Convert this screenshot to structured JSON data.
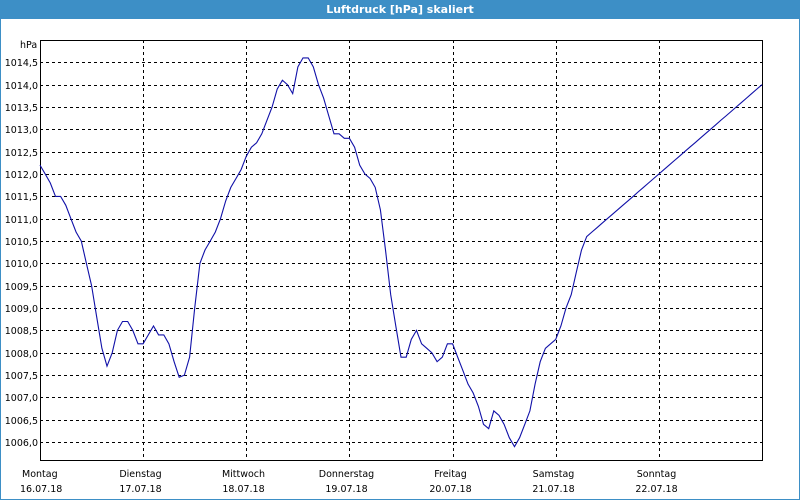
{
  "window": {
    "title": "Luftdruck [hPa] skaliert"
  },
  "chart_data": {
    "type": "line",
    "title": "Luftdruck [hPa] skaliert",
    "ylabel": "hPa",
    "xlabel": "",
    "ylim": [
      1005.6,
      1015.0
    ],
    "xlim": [
      0,
      7
    ],
    "grid": true,
    "yticks": [
      "1006,0",
      "1006,5",
      "1007,0",
      "1007,5",
      "1008,0",
      "1008,5",
      "1009,0",
      "1009,5",
      "1010,0",
      "1010,5",
      "1011,0",
      "1011,5",
      "1012,0",
      "1012,5",
      "1013,0",
      "1013,5",
      "1014,0",
      "1014,5"
    ],
    "xticks": [
      {
        "day": "Montag",
        "date": "16.07.18"
      },
      {
        "day": "Dienstag",
        "date": "17.07.18"
      },
      {
        "day": "Mittwoch",
        "date": "18.07.18"
      },
      {
        "day": "Donnerstag",
        "date": "19.07.18"
      },
      {
        "day": "Freitag",
        "date": "20.07.18"
      },
      {
        "day": "Samstag",
        "date": "21.07.18"
      },
      {
        "day": "Sonntag",
        "date": "22.07.18"
      }
    ],
    "series": [
      {
        "color": "#1010a8",
        "x": [
          0,
          0.05,
          0.1,
          0.15,
          0.2,
          0.25,
          0.3,
          0.35,
          0.4,
          0.45,
          0.5,
          0.55,
          0.6,
          0.65,
          0.7,
          0.75,
          0.8,
          0.85,
          0.9,
          0.95,
          1.0,
          1.05,
          1.1,
          1.15,
          1.2,
          1.25,
          1.3,
          1.35,
          1.4,
          1.45,
          1.5,
          1.55,
          1.6,
          1.65,
          1.7,
          1.75,
          1.8,
          1.85,
          1.9,
          1.95,
          2.0,
          2.05,
          2.1,
          2.15,
          2.2,
          2.25,
          2.3,
          2.35,
          2.4,
          2.45,
          2.5,
          2.55,
          2.6,
          2.65,
          2.7,
          2.75,
          2.8,
          2.85,
          2.9,
          2.95,
          3.0,
          3.05,
          3.1,
          3.15,
          3.2,
          3.25,
          3.3,
          3.35,
          3.4,
          3.45,
          3.5,
          3.55,
          3.6,
          3.65,
          3.7,
          3.75,
          3.8,
          3.85,
          3.9,
          3.95,
          4.0,
          4.05,
          4.1,
          4.15,
          4.2,
          4.25,
          4.3,
          4.35,
          4.4,
          4.45,
          4.5,
          4.55,
          4.6,
          4.65,
          4.7,
          4.75,
          4.8,
          4.85,
          4.9,
          4.95,
          5.0,
          5.05,
          5.1,
          5.15,
          5.2,
          5.25,
          5.3,
          5.35,
          5.4,
          5.45,
          5.5,
          5.55,
          5.6,
          5.65,
          5.7,
          5.75,
          5.8,
          5.85,
          5.9,
          5.95,
          6.0,
          6.05,
          6.1,
          6.15,
          6.2,
          6.25,
          6.3,
          6.35,
          6.4,
          6.45,
          6.5,
          6.55,
          6.6,
          6.65,
          6.7,
          6.75,
          6.8,
          6.85,
          6.9,
          6.95,
          7.0
        ],
        "y": [
          1012.2,
          1012.0,
          1011.8,
          1011.5,
          1011.5,
          1011.3,
          1011.0,
          1010.7,
          1010.5,
          1010.0,
          1009.5,
          1008.8,
          1008.1,
          1007.7,
          1008.0,
          1008.5,
          1008.7,
          1008.7,
          1008.5,
          1008.2,
          1008.2,
          1008.4,
          1008.6,
          1008.4,
          1008.4,
          1008.2,
          1007.8,
          1007.45,
          1007.5,
          1007.9,
          1009.0,
          1010.0,
          1010.3,
          1010.5,
          1010.7,
          1011.0,
          1011.4,
          1011.7,
          1011.9,
          1012.1,
          1012.4,
          1012.6,
          1012.7,
          1012.9,
          1013.2,
          1013.5,
          1013.9,
          1014.1,
          1014.0,
          1013.8,
          1014.4,
          1014.6,
          1014.6,
          1014.4,
          1014.0,
          1013.7,
          1013.3,
          1012.9,
          1012.9,
          1012.8,
          1012.8,
          1012.6,
          1012.2,
          1012.0,
          1011.9,
          1011.7,
          1011.2,
          1010.3,
          1009.3,
          1008.6,
          1007.9,
          1007.9,
          1008.3,
          1008.5,
          1008.2,
          1008.1,
          1008.0,
          1007.8,
          1007.9,
          1008.2,
          1008.2,
          1007.9,
          1007.6,
          1007.3,
          1007.1,
          1006.8,
          1006.4,
          1006.3,
          1006.7,
          1006.6,
          1006.4,
          1006.1,
          1005.9,
          1006.1,
          1006.4,
          1006.7,
          1007.3,
          1007.8,
          1008.1,
          1008.2,
          1008.3,
          1008.6,
          1009.0,
          1009.3,
          1009.8,
          1010.3,
          1010.6,
          1010.7,
          1010.8,
          1010.9,
          1011.0,
          1011.1,
          1011.2,
          1011.3,
          1011.4,
          1011.5,
          1011.6,
          1011.7,
          1011.8,
          1011.9,
          1012.0,
          1012.1,
          1012.2,
          1012.3,
          1012.4,
          1012.5,
          1012.6,
          1012.7,
          1012.8,
          1012.9,
          1013.0,
          1013.1,
          1013.2,
          1013.3,
          1013.4,
          1013.5,
          1013.6,
          1013.7,
          1013.8,
          1013.9,
          1014.0
        ]
      }
    ]
  }
}
